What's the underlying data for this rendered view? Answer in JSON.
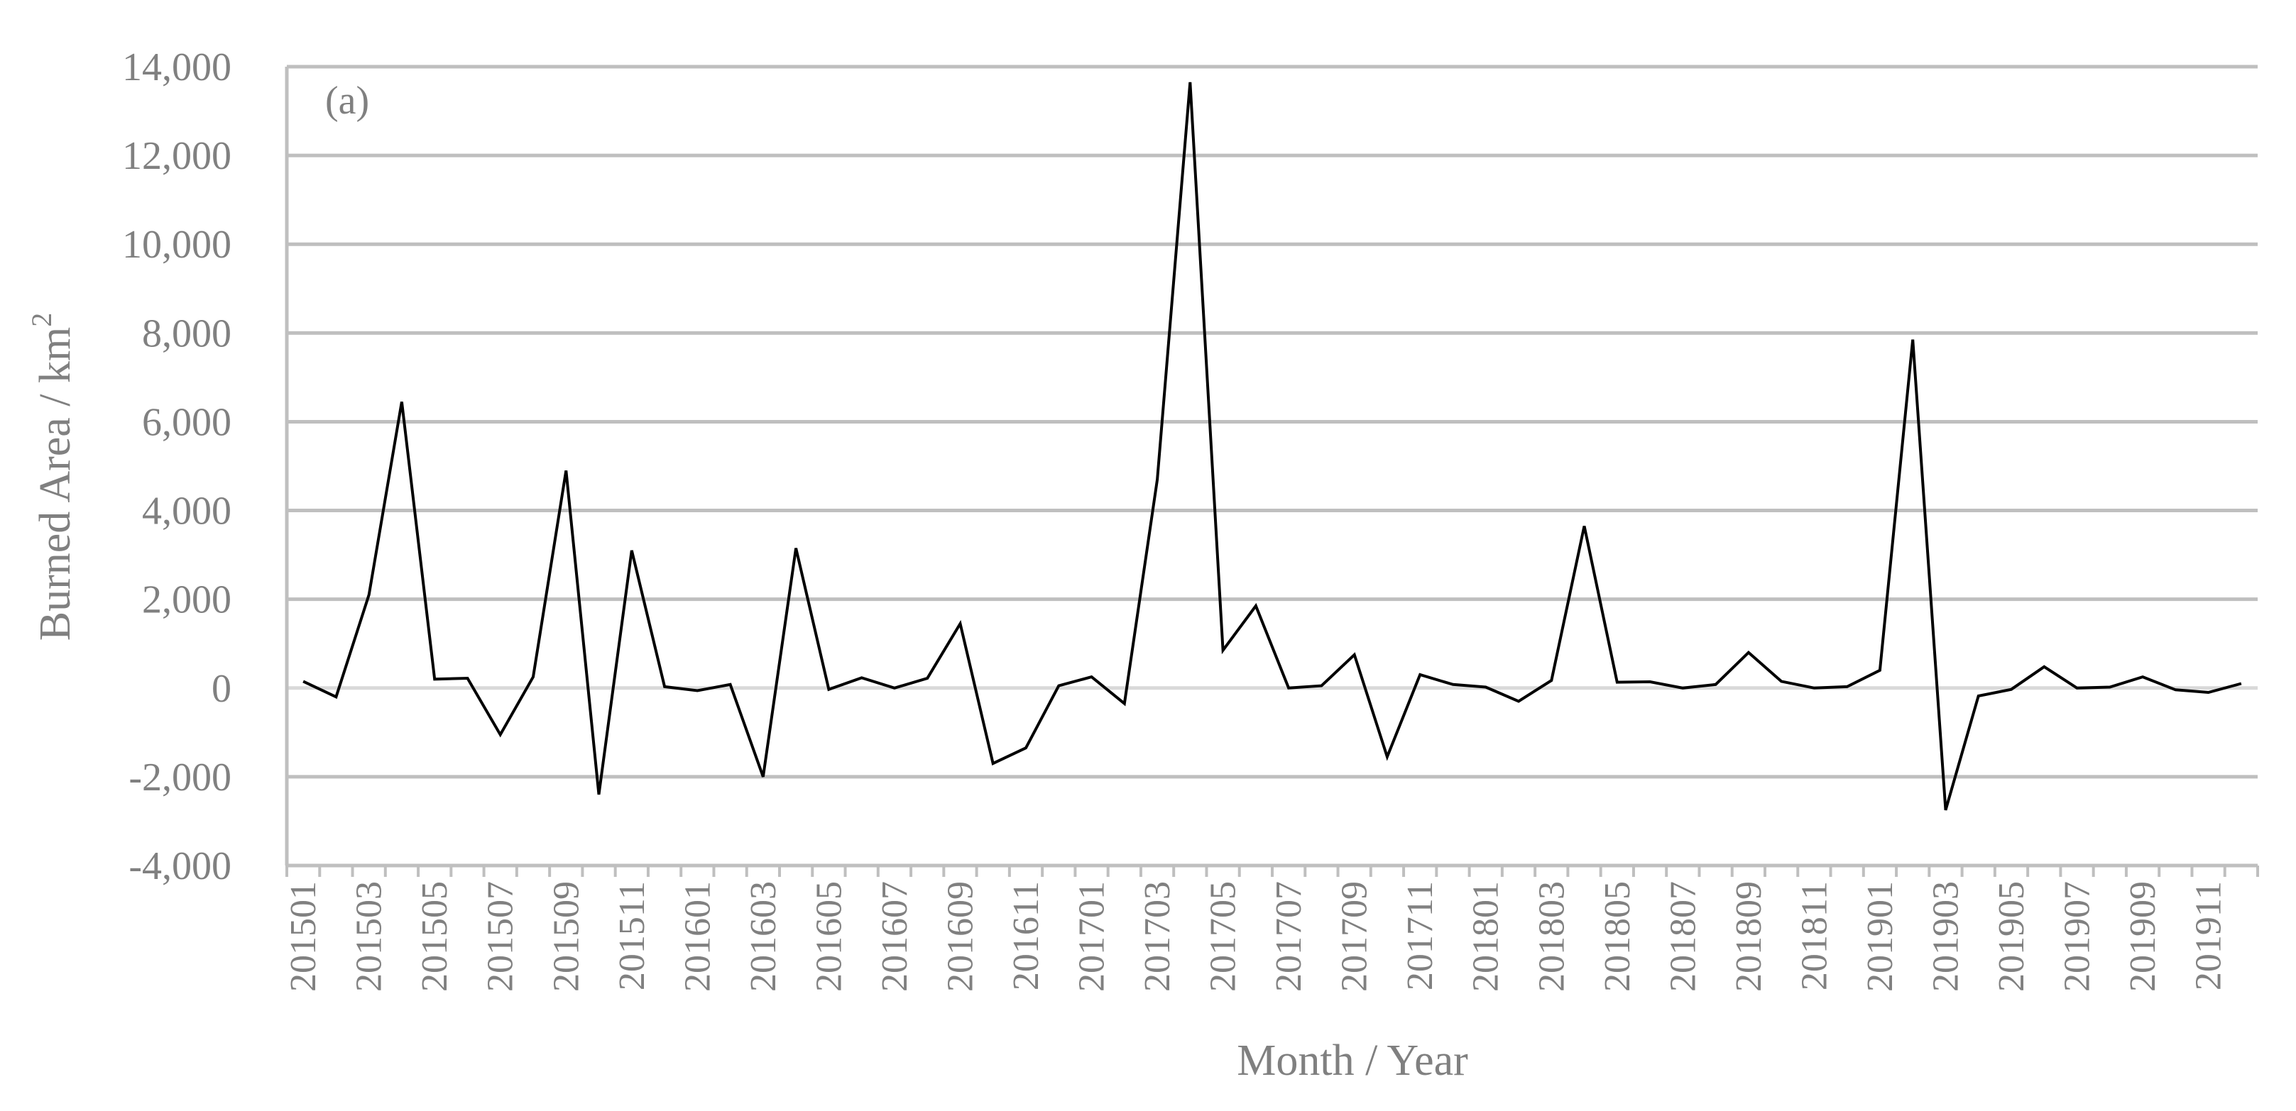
{
  "chart_data": {
    "type": "line",
    "panel_label": "(a)",
    "xlabel": "Month / Year",
    "ylabel": "Burned Area / km",
    "ylabel_superscript": "2",
    "ylim": [
      -4000,
      14000
    ],
    "yticks": [
      -4000,
      -2000,
      0,
      2000,
      4000,
      6000,
      8000,
      10000,
      12000,
      14000
    ],
    "ytick_labels": [
      "-4,000",
      "-2,000",
      "0",
      "2,000",
      "4,000",
      "6,000",
      "8,000",
      "10,000",
      "12,000",
      "14,000"
    ],
    "grid": true,
    "line_color": "#000000",
    "grid_color": "#bfbfbf",
    "zero_line_color": "#d9d9d9",
    "x": [
      "201501",
      "201502",
      "201503",
      "201504",
      "201505",
      "201506",
      "201507",
      "201508",
      "201509",
      "201510",
      "201511",
      "201512",
      "201601",
      "201602",
      "201603",
      "201604",
      "201605",
      "201606",
      "201607",
      "201608",
      "201609",
      "201610",
      "201611",
      "201612",
      "201701",
      "201702",
      "201703",
      "201704",
      "201705",
      "201706",
      "201707",
      "201708",
      "201709",
      "201710",
      "201711",
      "201712",
      "201801",
      "201802",
      "201803",
      "201804",
      "201805",
      "201806",
      "201807",
      "201808",
      "201809",
      "201810",
      "201811",
      "201812",
      "201901",
      "201902",
      "201903",
      "201904",
      "201905",
      "201906",
      "201907",
      "201908",
      "201909",
      "201910",
      "201911",
      "201912"
    ],
    "xtick_labels_shown": [
      "201501",
      "201503",
      "201505",
      "201507",
      "201509",
      "201511",
      "201601",
      "201603",
      "201605",
      "201607",
      "201609",
      "201611",
      "201701",
      "201703",
      "201705",
      "201707",
      "201709",
      "201711",
      "201801",
      "201803",
      "201805",
      "201807",
      "201809",
      "201811",
      "201901",
      "201903",
      "201905",
      "201907",
      "201909",
      "201911"
    ],
    "series": [
      {
        "values": [
          150,
          -200,
          2100,
          6450,
          200,
          220,
          -1050,
          250,
          4900,
          -2400,
          3100,
          30,
          -60,
          80,
          -2000,
          3150,
          -30,
          230,
          0,
          220,
          1450,
          -1700,
          -1350,
          50,
          250,
          -350,
          4700,
          13650,
          850,
          1850,
          0,
          50,
          750,
          -1550,
          300,
          80,
          20,
          -300,
          170,
          3650,
          130,
          140,
          0,
          80,
          800,
          150,
          0,
          30,
          400,
          7850,
          -2750,
          -180,
          -30,
          480,
          0,
          20,
          250,
          -40,
          -100,
          100
        ]
      }
    ]
  }
}
